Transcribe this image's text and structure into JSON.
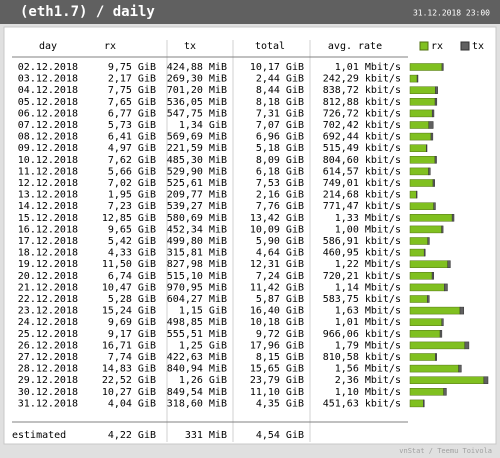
{
  "header": {
    "title": "(eth1.7) / daily",
    "timestamp": "31.12.2018 23:00"
  },
  "columns": [
    "day",
    "rx",
    "tx",
    "total",
    "avg. rate"
  ],
  "legend": [
    "rx",
    "tx"
  ],
  "rows": [
    [
      "02.12.2018",
      "9,75 GiB",
      "424,88 MiB",
      "10,17 GiB",
      "1,01 Mbit/s"
    ],
    [
      "03.12.2018",
      "2,17 GiB",
      "269,30 MiB",
      "2,44 GiB",
      "242,29 kbit/s"
    ],
    [
      "04.12.2018",
      "7,75 GiB",
      "701,20 MiB",
      "8,44 GiB",
      "838,72 kbit/s"
    ],
    [
      "05.12.2018",
      "7,65 GiB",
      "536,05 MiB",
      "8,18 GiB",
      "812,88 kbit/s"
    ],
    [
      "06.12.2018",
      "6,77 GiB",
      "547,75 MiB",
      "7,31 GiB",
      "726,72 kbit/s"
    ],
    [
      "07.12.2018",
      "5,73 GiB",
      "1,34 GiB",
      "7,07 GiB",
      "702,42 kbit/s"
    ],
    [
      "08.12.2018",
      "6,41 GiB",
      "569,69 MiB",
      "6,96 GiB",
      "692,44 kbit/s"
    ],
    [
      "09.12.2018",
      "4,97 GiB",
      "221,59 MiB",
      "5,18 GiB",
      "515,49 kbit/s"
    ],
    [
      "10.12.2018",
      "7,62 GiB",
      "485,30 MiB",
      "8,09 GiB",
      "804,60 kbit/s"
    ],
    [
      "11.12.2018",
      "5,66 GiB",
      "529,90 MiB",
      "6,18 GiB",
      "614,57 kbit/s"
    ],
    [
      "12.12.2018",
      "7,02 GiB",
      "525,61 MiB",
      "7,53 GiB",
      "749,01 kbit/s"
    ],
    [
      "13.12.2018",
      "1,95 GiB",
      "209,77 MiB",
      "2,16 GiB",
      "214,68 kbit/s"
    ],
    [
      "14.12.2018",
      "7,23 GiB",
      "539,27 MiB",
      "7,76 GiB",
      "771,47 kbit/s"
    ],
    [
      "15.12.2018",
      "12,85 GiB",
      "580,69 MiB",
      "13,42 GiB",
      "1,33 Mbit/s"
    ],
    [
      "16.12.2018",
      "9,65 GiB",
      "452,34 MiB",
      "10,09 GiB",
      "1,00 Mbit/s"
    ],
    [
      "17.12.2018",
      "5,42 GiB",
      "499,80 MiB",
      "5,90 GiB",
      "586,91 kbit/s"
    ],
    [
      "18.12.2018",
      "4,33 GiB",
      "315,81 MiB",
      "4,64 GiB",
      "460,95 kbit/s"
    ],
    [
      "19.12.2018",
      "11,50 GiB",
      "827,98 MiB",
      "12,31 GiB",
      "1,22 Mbit/s"
    ],
    [
      "20.12.2018",
      "6,74 GiB",
      "515,10 MiB",
      "7,24 GiB",
      "720,21 kbit/s"
    ],
    [
      "21.12.2018",
      "10,47 GiB",
      "970,95 MiB",
      "11,42 GiB",
      "1,14 Mbit/s"
    ],
    [
      "22.12.2018",
      "5,28 GiB",
      "604,27 MiB",
      "5,87 GiB",
      "583,75 kbit/s"
    ],
    [
      "23.12.2018",
      "15,24 GiB",
      "1,15 GiB",
      "16,40 GiB",
      "1,63 Mbit/s"
    ],
    [
      "24.12.2018",
      "9,69 GiB",
      "498,85 MiB",
      "10,18 GiB",
      "1,01 Mbit/s"
    ],
    [
      "25.12.2018",
      "9,17 GiB",
      "555,51 MiB",
      "9,72 GiB",
      "966,06 kbit/s"
    ],
    [
      "26.12.2018",
      "16,71 GiB",
      "1,25 GiB",
      "17,96 GiB",
      "1,79 Mbit/s"
    ],
    [
      "27.12.2018",
      "7,74 GiB",
      "422,63 MiB",
      "8,15 GiB",
      "810,58 kbit/s"
    ],
    [
      "28.12.2018",
      "14,83 GiB",
      "840,94 MiB",
      "15,65 GiB",
      "1,56 Mbit/s"
    ],
    [
      "29.12.2018",
      "22,52 GiB",
      "1,26 GiB",
      "23,79 GiB",
      "2,36 Mbit/s"
    ],
    [
      "30.12.2018",
      "10,27 GiB",
      "849,54 MiB",
      "11,10 GiB",
      "1,10 Mbit/s"
    ],
    [
      "31.12.2018",
      "4,04 GiB",
      "318,60 MiB",
      "4,35 GiB",
      "451,63 kbit/s"
    ]
  ],
  "estimated": [
    "estimated",
    "4,22 GiB",
    "331 MiB",
    "4,54 GiB"
  ],
  "footer": "vnStat / Teemu Toivola"
}
